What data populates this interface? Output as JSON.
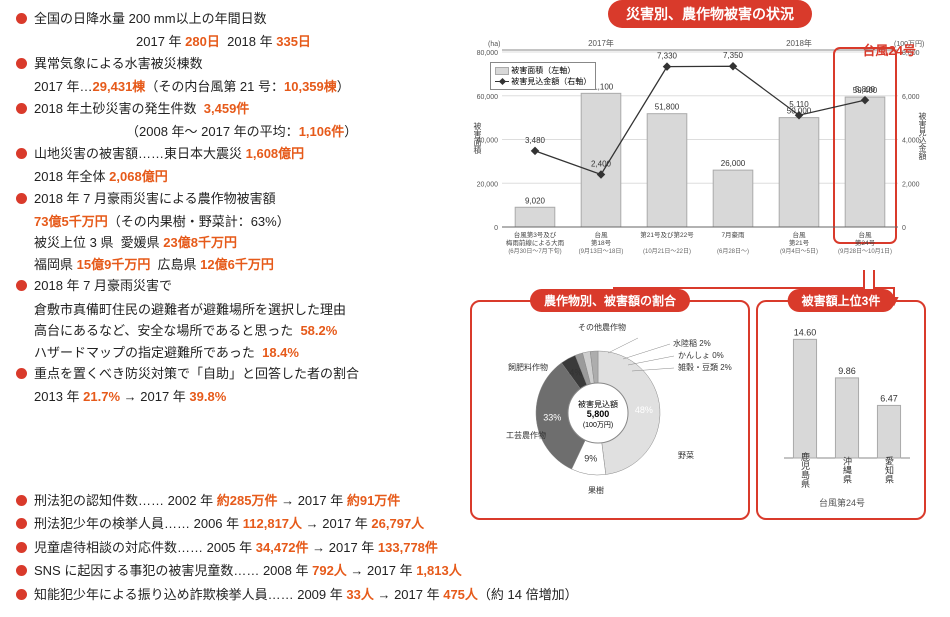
{
  "bullets": [
    {
      "t1": "全国の日降水量 200 mm以上の年間日数",
      "t2_pre": "2017 年 ",
      "t2_hl1": "280日",
      "t2_mid": "  2018 年 ",
      "t2_hl2": "335日"
    },
    {
      "t1": "異常気象による水害被災棟数",
      "t2_pre": "2017 年…",
      "t2_hl1": "29,431棟",
      "t2_mid": "（その内台風第 21 号：",
      "t2_hl2": "10,359棟",
      "t2_suf": "）"
    },
    {
      "t1_pre": "2018 年土砂災害の発生件数  ",
      "t1_hl": "3,459件",
      "t2_pre": "（2008 年〜 2017 年の平均：",
      "t2_hl1": "1,106件",
      "t2_mid": "）",
      "t2_indent": true
    },
    {
      "t1_pre": "山地災害の被害額……東日本大震災 ",
      "t1_hl": "1,608億円",
      "t2_pre": "2018 年全体 ",
      "t2_hl1": "2,068億円"
    },
    {
      "t1": "2018 年 7 月豪雨災害による農作物被害額",
      "t2_hl_first": "73億5千万円",
      "t2_mid": "（その内果樹・野菜計：63%）",
      "t3_pre": "被災上位 3 県  愛媛県 ",
      "t3_hl1": "23億8千万円",
      "t4_pre": "福岡県 ",
      "t4_hl1": "15億9千万円",
      "t4_mid": "  広島県 ",
      "t4_hl2": "12億6千万円"
    },
    {
      "t1": "2018 年 7 月豪雨災害で",
      "t2": "倉敷市真備町住民の避難者が避難場所を選択した理由",
      "t3_pre": "高台にあるなど、安全な場所であると思った  ",
      "t3_hl": "58.2%",
      "t4_pre": "ハザードマップの指定避難所であった  ",
      "t4_hl": "18.4%"
    },
    {
      "t1": "重点を置くべき防災対策で「自助」と回答した者の割合",
      "t2_pre": "2013 年 ",
      "t2_hl1": "21.7%",
      "t2_mid": " → 2017 年 ",
      "t2_hl2": "39.8%"
    }
  ],
  "fullwidth": [
    {
      "pre": "刑法犯の認知件数…… 2002 年 ",
      "hl1": "約285万件",
      "mid": " → 2017 年 ",
      "hl2": "約91万件"
    },
    {
      "pre": "刑法犯少年の検挙人員…… 2006 年 ",
      "hl1": "112,817人",
      "mid": " → 2017 年 ",
      "hl2": "26,797人"
    },
    {
      "pre": "児童虐待相談の対応件数…… 2005 年 ",
      "hl1": "34,472件",
      "mid": " → 2017 年 ",
      "hl2": "133,778件"
    },
    {
      "pre": "SNS に起因する事犯の被害児童数…… 2008 年 ",
      "hl1": "792人",
      "mid": " → 2017 年 ",
      "hl2": "1,813人"
    },
    {
      "pre": "知能犯少年による振り込め詐欺検挙人員…… 2009 年 ",
      "hl1": "33人",
      "mid": " → 2017 年 ",
      "hl2": "475人",
      "suf": "（約 14 倍増加）"
    }
  ],
  "chart_header": "災害別、農作物被害の状況",
  "callout_typhoon24": "台風24号",
  "barchart": {
    "left_unit": "(ha)",
    "right_unit": "(100万円)",
    "left_max": 80000,
    "right_max": 8000,
    "year_2017": "2017年",
    "year_2018": "2018年",
    "legend_bar": "被害面積（左軸）",
    "legend_line": "被害見込金額（右軸）",
    "axis_left_label": "被害面積",
    "axis_right_label": "被害見込金額",
    "bars": [
      {
        "label1": "台風第3号及び",
        "label2": "梅雨前線による大雨",
        "label3": "(6月30日〜7月下旬)",
        "area": 9020,
        "amount": 3480
      },
      {
        "label1": "台風",
        "label2": "第18号",
        "label3": "(9月13日〜18日)",
        "area": 61100,
        "amount": 2400
      },
      {
        "label1": "第21号及び第22号",
        "label2": "",
        "label3": "(10月21日〜22日)",
        "area": 51800,
        "amount": 7330
      },
      {
        "label1": "7月豪雨",
        "label2": "",
        "label3": "(6月28日〜)",
        "area": 26000,
        "amount": 7350
      },
      {
        "label1": "台風",
        "label2": "第21号",
        "label3": "(9月4日〜5日)",
        "area": 50000,
        "amount": 5110
      },
      {
        "label1": "台風",
        "label2": "第24号",
        "label3": "(9月28日〜10月1日)",
        "area": 59400,
        "amount": 5800
      }
    ],
    "bar_color": "#d8d8d8",
    "bar_border": "#aaaaaa",
    "line_color": "#333333",
    "grid_color": "#dddddd",
    "highlight_color": "#d93a2b"
  },
  "pie": {
    "title": "農作物別、被害額の割合",
    "center1": "被害見込額",
    "center2": "5,800",
    "center3": "(100万円)",
    "slices": [
      {
        "label": "野菜",
        "pct": 48,
        "color": "#e0e0e0"
      },
      {
        "label": "果樹",
        "pct": 9,
        "color": "#ffffff"
      },
      {
        "label": "工芸農作物",
        "pct": 33,
        "color": "#6e6e6e"
      },
      {
        "label": "飼肥料作物",
        "pct": 4,
        "color": "#3a3a3a"
      },
      {
        "label": "その他農作物",
        "pct": 2,
        "color": "#9a9a9a"
      },
      {
        "label": "水陸稲 2%",
        "pct": 2,
        "color": "#cfcfcf"
      },
      {
        "label": "かんしょ 0%",
        "pct": 0,
        "color": "#bdbdbd"
      },
      {
        "label": "雑穀・豆類 2%",
        "pct": 2,
        "color": "#adadad"
      }
    ]
  },
  "top3": {
    "title": "被害額上位3件",
    "bars": [
      {
        "label": "鹿児島県",
        "val": 14.6
      },
      {
        "label": "沖縄県",
        "val": 9.86
      },
      {
        "label": "愛知県",
        "val": 6.47
      }
    ],
    "footer": "台風第24号",
    "bar_color": "#d8d8d8",
    "bar_border": "#aaaaaa",
    "max": 16
  }
}
